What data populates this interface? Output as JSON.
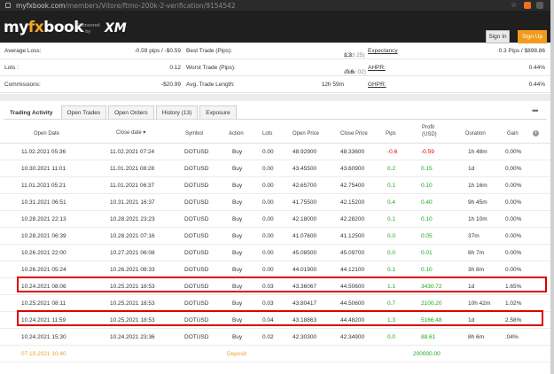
{
  "browser": {
    "url_main": "myfxbook.com",
    "url_path": "/members/Vitore/ftmo-200k-2-verification/9154542"
  },
  "header": {
    "logo_prefix": "my",
    "logo_fx": "fx",
    "logo_suffix": "book",
    "sponsored_line1": "Sponsored",
    "sponsored_line2": "by",
    "sponsor_logo": "XM",
    "signin_label": "Sign In",
    "signup_label": "Sign Up"
  },
  "stats": [
    {
      "l1": "Average Loss:",
      "v1": "-0.59 pips / -$0.59",
      "l2": "Best Trade (Pips):",
      "d2": "(Oct 25)",
      "v2": "1.3",
      "l3": "Expectancy",
      "v3": "0.3 Pips / $898.86"
    },
    {
      "l1": "Lots :",
      "v1": "0.12",
      "l2": "Worst Trade (Pips):",
      "d2": "(Nov 02)",
      "v2": "-0.6",
      "l3": "AHPR:",
      "v3": "0.44%"
    },
    {
      "l1": "Commissions:",
      "v1": "-$20.99",
      "l2": "Avg. Trade Length:",
      "d2": "",
      "v2": "12h 59m",
      "l3": "GHPR:",
      "v3": "0.44%"
    }
  ],
  "tabs": [
    "Trading Activity",
    "Open Trades",
    "Open Orders",
    "History (13)",
    "Exposure"
  ],
  "columns": {
    "open_date": "Open Date",
    "close_date": "Close date ▾",
    "symbol": "Symbol",
    "action": "Action",
    "lots": "Lots",
    "open_price": "Open Price",
    "close_price": "Close Price",
    "pips": "Pips",
    "profit_line1": "Profit",
    "profit_line2": "(USD)",
    "duration": "Duration",
    "gain": "Gain"
  },
  "rows": [
    {
      "open": "11.02.2021 05:36",
      "close": "11.02.2021 07:24",
      "symbol": "DOTUSD",
      "action": "Buy",
      "lots": "0.00",
      "op": "48.92900",
      "cp": "48.33600",
      "pips": "-0.6",
      "profit": "-0.59",
      "dur": "1h 48m",
      "gain": "0.00%",
      "sign": "neg"
    },
    {
      "open": "10.30.2021 11:01",
      "close": "11.01.2021 08:28",
      "symbol": "DOTUSD",
      "action": "Buy",
      "lots": "0.00",
      "op": "43.45500",
      "cp": "43.60900",
      "pips": "0.2",
      "profit": "0.15",
      "dur": "1d",
      "gain": "0.00%",
      "sign": "pos"
    },
    {
      "open": "11.01.2021 05:21",
      "close": "11.01.2021 06:37",
      "symbol": "DOTUSD",
      "action": "Buy",
      "lots": "0.00",
      "op": "42.65700",
      "cp": "42.75400",
      "pips": "0.1",
      "profit": "0.10",
      "dur": "1h 16m",
      "gain": "0.00%",
      "sign": "pos"
    },
    {
      "open": "10.31.2021 06:51",
      "close": "10.31.2021 16:37",
      "symbol": "DOTUSD",
      "action": "Buy",
      "lots": "0.00",
      "op": "41.75500",
      "cp": "42.15200",
      "pips": "0.4",
      "profit": "0.40",
      "dur": "9h 45m",
      "gain": "0.00%",
      "sign": "pos"
    },
    {
      "open": "10.28.2021 22:13",
      "close": "10.28.2021 23:23",
      "symbol": "DOTUSD",
      "action": "Buy",
      "lots": "0.00",
      "op": "42.18000",
      "cp": "42.28200",
      "pips": "0.1",
      "profit": "0.10",
      "dur": "1h 10m",
      "gain": "0.00%",
      "sign": "pos"
    },
    {
      "open": "10.28.2021 06:39",
      "close": "10.28.2021 07:16",
      "symbol": "DOTUSD",
      "action": "Buy",
      "lots": "0.00",
      "op": "41.07600",
      "cp": "41.12500",
      "pips": "0.0",
      "profit": "0.05",
      "dur": "37m",
      "gain": "0.00%",
      "sign": "pos"
    },
    {
      "open": "10.26.2021 22:00",
      "close": "10.27.2021 06:08",
      "symbol": "DOTUSD",
      "action": "Buy",
      "lots": "0.00",
      "op": "45.08500",
      "cp": "45.09700",
      "pips": "0.0",
      "profit": "0.01",
      "dur": "8h 7m",
      "gain": "0.00%",
      "sign": "pos"
    },
    {
      "open": "10.26.2021 05:24",
      "close": "10.26.2021 08:33",
      "symbol": "DOTUSD",
      "action": "Buy",
      "lots": "0.00",
      "op": "44.01900",
      "cp": "44.12100",
      "pips": "0.1",
      "profit": "0.10",
      "dur": "3h 8m",
      "gain": "0.00%",
      "sign": "pos"
    },
    {
      "open": "10.24.2021 08:06",
      "close": "10.25.2021 18:53",
      "symbol": "DOTUSD",
      "action": "Buy",
      "lots": "0.03",
      "op": "43.36067",
      "cp": "44.50600",
      "pips": "1.1",
      "profit": "3430.72",
      "dur": "1d",
      "gain": "1.65%",
      "sign": "pos"
    },
    {
      "open": "10.25.2021 08:11",
      "close": "10.25.2021 18:53",
      "symbol": "DOTUSD",
      "action": "Buy",
      "lots": "0.03",
      "op": "43.80417",
      "cp": "44.50600",
      "pips": "0.7",
      "profit": "2100.20",
      "dur": "10h 42m",
      "gain": "1.02%",
      "sign": "pos"
    },
    {
      "open": "10.24.2021 11:59",
      "close": "10.25.2021 18:53",
      "symbol": "DOTUSD",
      "action": "Buy",
      "lots": "0.04",
      "op": "43.18863",
      "cp": "44.48200",
      "pips": "1.3",
      "profit": "5166.48",
      "dur": "1d",
      "gain": "2.58%",
      "sign": "pos"
    },
    {
      "open": "10.24.2021 15:30",
      "close": "10.24.2021 23:36",
      "symbol": "DOTUSD",
      "action": "Buy",
      "lots": "0.02",
      "op": "42.30300",
      "cp": "42.34900",
      "pips": "0.0",
      "profit": "88.61",
      "dur": "8h 6m",
      "gain": ".04%",
      "sign": "pos"
    }
  ],
  "deposit": {
    "date": "07.10.2021 10:40",
    "label": "Deposit",
    "amount": "200000.00"
  },
  "colors": {
    "loss": "#e00000",
    "profit": "#1fa51f",
    "deposit": "#f0a030",
    "signup": "#f29a1e",
    "highlight": "#e00000"
  }
}
